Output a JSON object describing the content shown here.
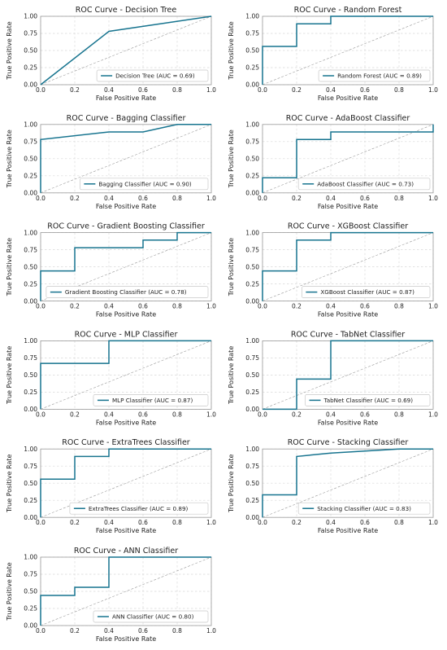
{
  "figure": {
    "colors": {
      "curve": "#17748f",
      "chance": "#9a9a9a",
      "grid": "#d9d9d9",
      "axis": "#9a9a9a",
      "legend_border": "#c8c8c8",
      "text": "#222222"
    }
  },
  "chart_data": [
    {
      "type": "line",
      "title": "ROC Curve - Decision Tree",
      "xlabel": "False Positive Rate",
      "ylabel": "True Positive Rate",
      "xlim": [
        0,
        1
      ],
      "ylim": [
        0,
        1
      ],
      "xticks": [
        "0.0",
        "0.2",
        "0.4",
        "0.6",
        "0.8",
        "1.0"
      ],
      "yticks": [
        "0.00",
        "0.25",
        "0.50",
        "0.75",
        "1.00"
      ],
      "grid": true,
      "legend_position": "lower-right",
      "series": [
        {
          "name": "Decision Tree (AUC = 0.69)",
          "x": [
            0,
            0.4,
            1
          ],
          "y": [
            0,
            0.78,
            1
          ]
        }
      ]
    },
    {
      "type": "line",
      "title": "ROC Curve - Random Forest",
      "xlabel": "False Positive Rate",
      "ylabel": "True Positive Rate",
      "xlim": [
        0,
        1
      ],
      "ylim": [
        0,
        1
      ],
      "xticks": [
        "0.0",
        "0.2",
        "0.4",
        "0.6",
        "0.8",
        "1.0"
      ],
      "yticks": [
        "0.00",
        "0.25",
        "0.50",
        "0.75",
        "1.00"
      ],
      "grid": true,
      "legend_position": "lower-right",
      "series": [
        {
          "name": "Random Forest (AUC = 0.89)",
          "x": [
            0,
            0,
            0.2,
            0.2,
            0.4,
            0.4,
            1
          ],
          "y": [
            0,
            0.56,
            0.56,
            0.89,
            0.89,
            1,
            1
          ]
        }
      ]
    },
    {
      "type": "line",
      "title": "ROC Curve - Bagging Classifier",
      "xlabel": "False Positive Rate",
      "ylabel": "True Positive Rate",
      "xlim": [
        0,
        1
      ],
      "ylim": [
        0,
        1
      ],
      "xticks": [
        "0.0",
        "0.2",
        "0.4",
        "0.6",
        "0.8",
        "1.0"
      ],
      "yticks": [
        "0.00",
        "0.25",
        "0.50",
        "0.75",
        "1.00"
      ],
      "grid": true,
      "legend_position": "lower-right",
      "series": [
        {
          "name": "Bagging Classifier (AUC = 0.90)",
          "x": [
            0,
            0,
            0.4,
            0.6,
            0.8,
            1
          ],
          "y": [
            0,
            0.78,
            0.89,
            0.89,
            1,
            1
          ]
        }
      ]
    },
    {
      "type": "line",
      "title": "ROC Curve - AdaBoost Classifier",
      "xlabel": "False Positive Rate",
      "ylabel": "True Positive Rate",
      "xlim": [
        0,
        1
      ],
      "ylim": [
        0,
        1
      ],
      "xticks": [
        "0.0",
        "0.2",
        "0.4",
        "0.6",
        "0.8",
        "1.0"
      ],
      "yticks": [
        "0.00",
        "0.25",
        "0.50",
        "0.75",
        "1.00"
      ],
      "grid": true,
      "legend_position": "lower-right",
      "series": [
        {
          "name": "AdaBoost Classifier (AUC = 0.73)",
          "x": [
            0,
            0,
            0.2,
            0.2,
            0.4,
            0.4,
            1,
            1
          ],
          "y": [
            0,
            0.22,
            0.22,
            0.78,
            0.78,
            0.89,
            0.89,
            1
          ]
        }
      ]
    },
    {
      "type": "line",
      "title": "ROC Curve - Gradient Boosting Classifier",
      "xlabel": "False Positive Rate",
      "ylabel": "True Positive Rate",
      "xlim": [
        0,
        1
      ],
      "ylim": [
        0,
        1
      ],
      "xticks": [
        "0.0",
        "0.2",
        "0.4",
        "0.6",
        "0.8",
        "1.0"
      ],
      "yticks": [
        "0.00",
        "0.25",
        "0.50",
        "0.75",
        "1.00"
      ],
      "grid": true,
      "legend_position": "lower-right",
      "series": [
        {
          "name": "Gradient Boosting Classifier (AUC = 0.78)",
          "x": [
            0,
            0,
            0.2,
            0.2,
            0.6,
            0.6,
            0.8,
            0.8,
            1
          ],
          "y": [
            0,
            0.44,
            0.44,
            0.78,
            0.78,
            0.89,
            0.89,
            1,
            1
          ]
        }
      ]
    },
    {
      "type": "line",
      "title": "ROC Curve - XGBoost Classifier",
      "xlabel": "False Positive Rate",
      "ylabel": "True Positive Rate",
      "xlim": [
        0,
        1
      ],
      "ylim": [
        0,
        1
      ],
      "xticks": [
        "0.0",
        "0.2",
        "0.4",
        "0.6",
        "0.8",
        "1.0"
      ],
      "yticks": [
        "0.00",
        "0.25",
        "0.50",
        "0.75",
        "1.00"
      ],
      "grid": true,
      "legend_position": "lower-right",
      "series": [
        {
          "name": "XGBoost Classifier (AUC = 0.87)",
          "x": [
            0,
            0,
            0.2,
            0.2,
            0.4,
            0.4,
            1
          ],
          "y": [
            0,
            0.44,
            0.44,
            0.89,
            0.89,
            1,
            1
          ]
        }
      ]
    },
    {
      "type": "line",
      "title": "ROC Curve - MLP Classifier",
      "xlabel": "False Positive Rate",
      "ylabel": "True Positive Rate",
      "xlim": [
        0,
        1
      ],
      "ylim": [
        0,
        1
      ],
      "xticks": [
        "0.0",
        "0.2",
        "0.4",
        "0.6",
        "0.8",
        "1.0"
      ],
      "yticks": [
        "0.00",
        "0.25",
        "0.50",
        "0.75",
        "1.00"
      ],
      "grid": true,
      "legend_position": "lower-right",
      "series": [
        {
          "name": "MLP Classifier (AUC = 0.87)",
          "x": [
            0,
            0,
            0.4,
            0.4,
            1
          ],
          "y": [
            0,
            0.67,
            0.67,
            1,
            1
          ]
        }
      ]
    },
    {
      "type": "line",
      "title": "ROC Curve - TabNet Classifier",
      "xlabel": "False Positive Rate",
      "ylabel": "True Positive Rate",
      "xlim": [
        0,
        1
      ],
      "ylim": [
        0,
        1
      ],
      "xticks": [
        "0.0",
        "0.2",
        "0.4",
        "0.6",
        "0.8",
        "1.0"
      ],
      "yticks": [
        "0.00",
        "0.25",
        "0.50",
        "0.75",
        "1.00"
      ],
      "grid": true,
      "legend_position": "lower-right",
      "series": [
        {
          "name": "TabNet Classifier (AUC = 0.69)",
          "x": [
            0,
            0.2,
            0.2,
            0.4,
            0.4,
            1
          ],
          "y": [
            0,
            0,
            0.44,
            0.44,
            1,
            1
          ]
        }
      ]
    },
    {
      "type": "line",
      "title": "ROC Curve - ExtraTrees Classifier",
      "xlabel": "False Positive Rate",
      "ylabel": "True Positive Rate",
      "xlim": [
        0,
        1
      ],
      "ylim": [
        0,
        1
      ],
      "xticks": [
        "0.0",
        "0.2",
        "0.4",
        "0.6",
        "0.8",
        "1.0"
      ],
      "yticks": [
        "0.00",
        "0.25",
        "0.50",
        "0.75",
        "1.00"
      ],
      "grid": true,
      "legend_position": "lower-right",
      "series": [
        {
          "name": "ExtraTrees Classifier (AUC = 0.89)",
          "x": [
            0,
            0,
            0.2,
            0.2,
            0.4,
            0.4,
            1
          ],
          "y": [
            0,
            0.56,
            0.56,
            0.89,
            0.89,
            1,
            1
          ]
        }
      ]
    },
    {
      "type": "line",
      "title": "ROC Curve - Stacking Classifier",
      "xlabel": "False Positive Rate",
      "ylabel": "True Positive Rate",
      "xlim": [
        0,
        1
      ],
      "ylim": [
        0,
        1
      ],
      "xticks": [
        "0.0",
        "0.2",
        "0.4",
        "0.6",
        "0.8",
        "1.0"
      ],
      "yticks": [
        "0.00",
        "0.25",
        "0.50",
        "0.75",
        "1.00"
      ],
      "grid": true,
      "legend_position": "lower-right",
      "series": [
        {
          "name": "Stacking Classifier (AUC = 0.83)",
          "x": [
            0,
            0,
            0.2,
            0.2,
            0.4,
            0.8,
            1
          ],
          "y": [
            0,
            0.33,
            0.33,
            0.89,
            0.94,
            1,
            1
          ]
        }
      ]
    },
    {
      "type": "line",
      "title": "ROC Curve - ANN Classifier",
      "xlabel": "False Positive Rate",
      "ylabel": "True Positive Rate",
      "xlim": [
        0,
        1
      ],
      "ylim": [
        0,
        1
      ],
      "xticks": [
        "0.0",
        "0.2",
        "0.4",
        "0.6",
        "0.8",
        "1.0"
      ],
      "yticks": [
        "0.00",
        "0.25",
        "0.50",
        "0.75",
        "1.00"
      ],
      "grid": true,
      "legend_position": "lower-right",
      "series": [
        {
          "name": "ANN Classifier (AUC = 0.80)",
          "x": [
            0,
            0,
            0.2,
            0.2,
            0.4,
            0.4,
            1
          ],
          "y": [
            0,
            0.44,
            0.44,
            0.56,
            0.56,
            1,
            1
          ]
        }
      ]
    }
  ]
}
